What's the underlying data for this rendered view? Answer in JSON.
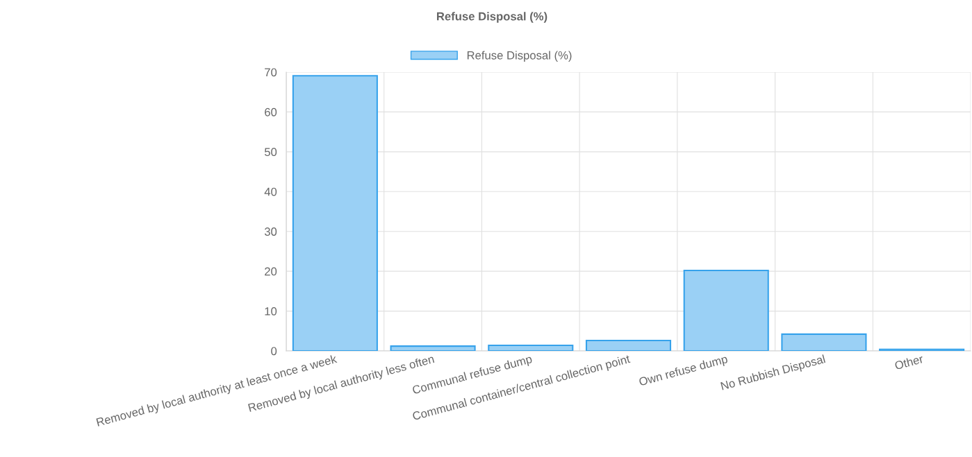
{
  "chart_data": {
    "type": "bar",
    "title": "Refuse Disposal (%)",
    "categories": [
      "Removed by local authority at least once a week",
      "Removed by local authority less often",
      "Communal refuse dump",
      "Communal container/central collection point",
      "Own refuse dump",
      "No Rubbish Disposal",
      "Other"
    ],
    "series": [
      {
        "name": "Refuse Disposal (%)",
        "color": "#9ad0f5",
        "values": [
          69.1,
          1.2,
          1.4,
          2.6,
          20.2,
          4.2,
          0.4
        ]
      }
    ],
    "ylim": [
      0,
      70
    ],
    "yticks": [
      0,
      10,
      20,
      30,
      40,
      50,
      60,
      70
    ],
    "grid": true,
    "legend": "top"
  }
}
